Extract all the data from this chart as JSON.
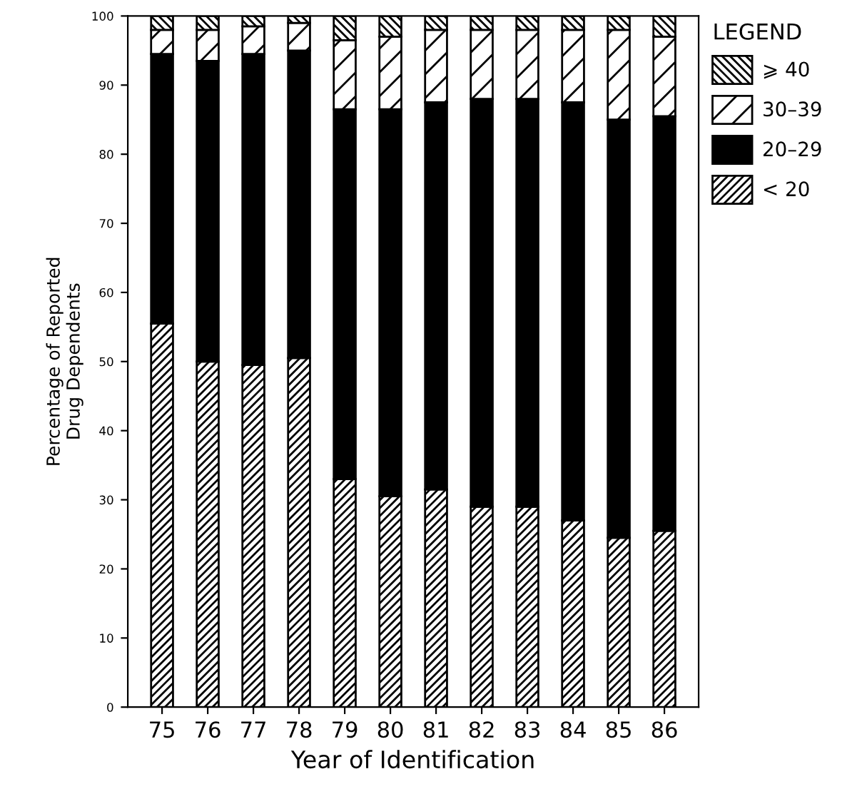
{
  "chart_data": {
    "type": "bar",
    "stacked": true,
    "xlabel": "Year of Identification",
    "ylabel": "Percentage of Reported\nDrug Dependents",
    "legend_title": "LEGEND",
    "legend": "top right",
    "categories": [
      "75",
      "76",
      "77",
      "78",
      "79",
      "80",
      "81",
      "82",
      "83",
      "84",
      "85",
      "86"
    ],
    "series": [
      {
        "name": "< 20",
        "color": "#000000",
        "values": [
          55.5,
          50,
          49.5,
          50.5,
          33,
          30.5,
          31.5,
          29,
          29,
          27,
          24.5,
          25.5
        ]
      },
      {
        "name": "20–29",
        "color": "#000000",
        "values": [
          39,
          43.5,
          45,
          44.5,
          53.5,
          56,
          56,
          59,
          59,
          60.5,
          60.5,
          60
        ]
      },
      {
        "name": "30–39",
        "color": "#000000",
        "values": [
          3.5,
          4.5,
          4,
          4,
          10,
          10.5,
          10.5,
          10,
          10,
          10.5,
          13,
          11.5
        ]
      },
      {
        "name": "⩾ 40",
        "color": "#000000",
        "values": [
          2,
          2,
          1.5,
          1,
          3.5,
          3,
          2,
          2,
          2,
          2,
          2,
          3
        ]
      }
    ],
    "ylim": [
      0,
      100
    ],
    "yticks": [
      0,
      10,
      20,
      30,
      40,
      50,
      60,
      70,
      80,
      90,
      100
    ],
    "grid": false
  }
}
